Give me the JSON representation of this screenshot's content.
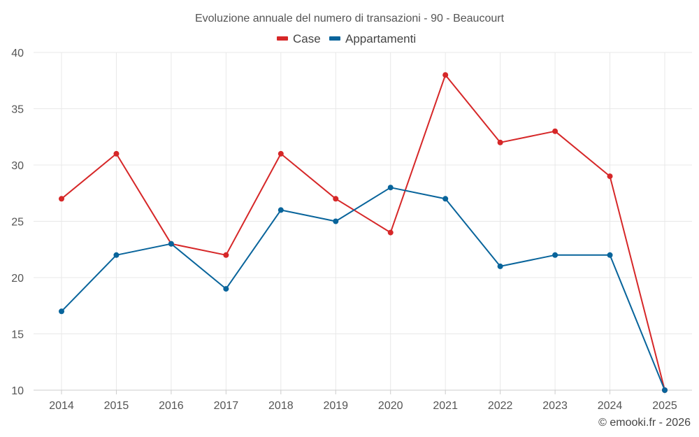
{
  "chart_data": {
    "type": "line",
    "title": "Evoluzione annuale del numero di transazioni - 90 - Beaucourt",
    "categories": [
      "2014",
      "2015",
      "2016",
      "2017",
      "2018",
      "2019",
      "2020",
      "2021",
      "2022",
      "2023",
      "2024",
      "2025"
    ],
    "series": [
      {
        "name": "Case",
        "color": "#d62728",
        "values": [
          27,
          31,
          23,
          22,
          31,
          27,
          24,
          38,
          32,
          33,
          29,
          10
        ]
      },
      {
        "name": "Appartamenti",
        "color": "#08649b",
        "values": [
          17,
          22,
          23,
          19,
          26,
          25,
          28,
          27,
          21,
          22,
          22,
          10
        ]
      }
    ],
    "ylim": [
      10,
      40
    ],
    "yticks": [
      10,
      15,
      20,
      25,
      30,
      35,
      40
    ],
    "xlabel": "",
    "ylabel": "",
    "grid": true,
    "legend_position": "top-center"
  },
  "credit": "© emooki.fr - 2026"
}
